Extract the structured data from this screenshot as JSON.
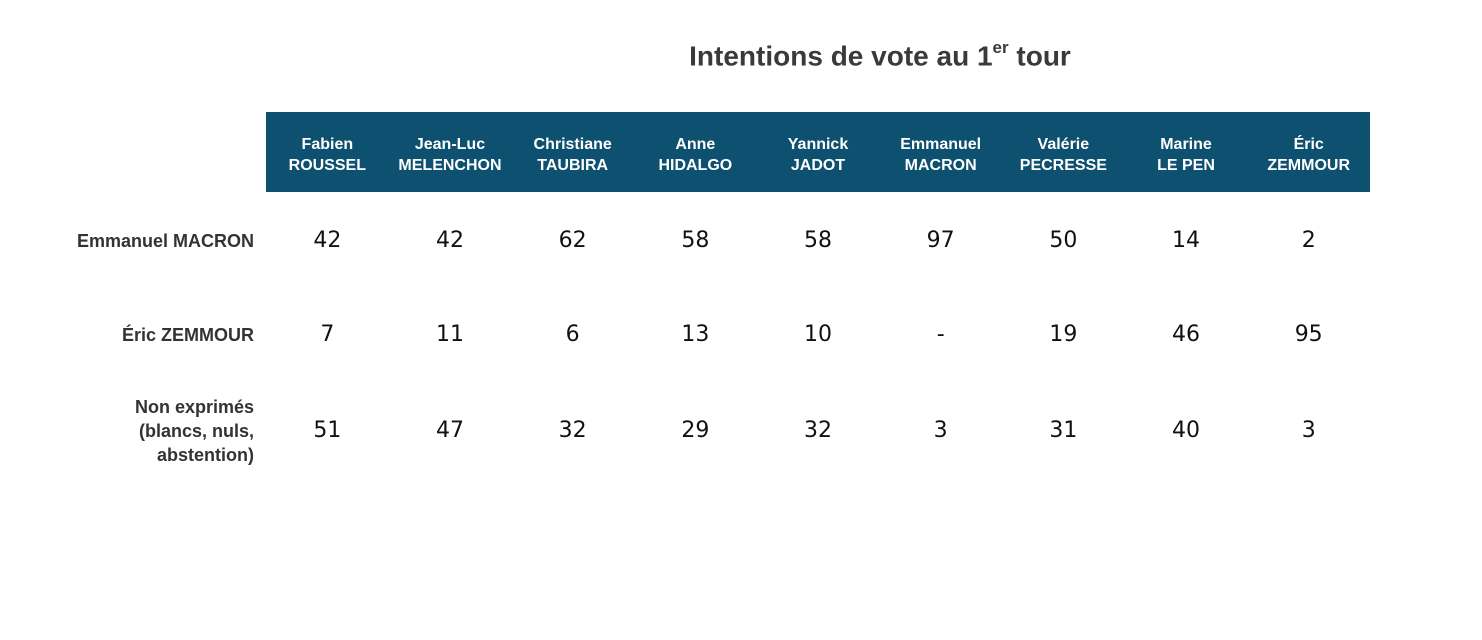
{
  "title": {
    "main": "Intentions de vote au 1",
    "sup": "er",
    "tail": " tour"
  },
  "chart_data": {
    "type": "table",
    "columns": [
      {
        "first": "Fabien",
        "last": "ROUSSEL"
      },
      {
        "first": "Jean-Luc",
        "last": "MELENCHON"
      },
      {
        "first": "Christiane",
        "last": "TAUBIRA"
      },
      {
        "first": "Anne",
        "last": "HIDALGO"
      },
      {
        "first": "Yannick",
        "last": "JADOT"
      },
      {
        "first": "Emmanuel",
        "last": "MACRON"
      },
      {
        "first": "Valérie",
        "last": "PECRESSE"
      },
      {
        "first": "Marine",
        "last": "LE PEN"
      },
      {
        "first": "Éric",
        "last": "ZEMMOUR"
      }
    ],
    "rows": [
      {
        "label": [
          "Emmanuel MACRON"
        ],
        "values": [
          "42",
          "42",
          "62",
          "58",
          "58",
          "97",
          "50",
          "14",
          "2"
        ]
      },
      {
        "label": [
          "Éric ZEMMOUR"
        ],
        "values": [
          "7",
          "11",
          "6",
          "13",
          "10",
          "-",
          "19",
          "46",
          "95"
        ]
      },
      {
        "label": [
          "Non exprimés",
          "(blancs, nuls,",
          "abstention)"
        ],
        "values": [
          "51",
          "47",
          "32",
          "29",
          "32",
          "3",
          "31",
          "40",
          "3"
        ]
      }
    ]
  },
  "colors": {
    "header_bg": "#0d5070",
    "header_text": "#ffffff"
  }
}
